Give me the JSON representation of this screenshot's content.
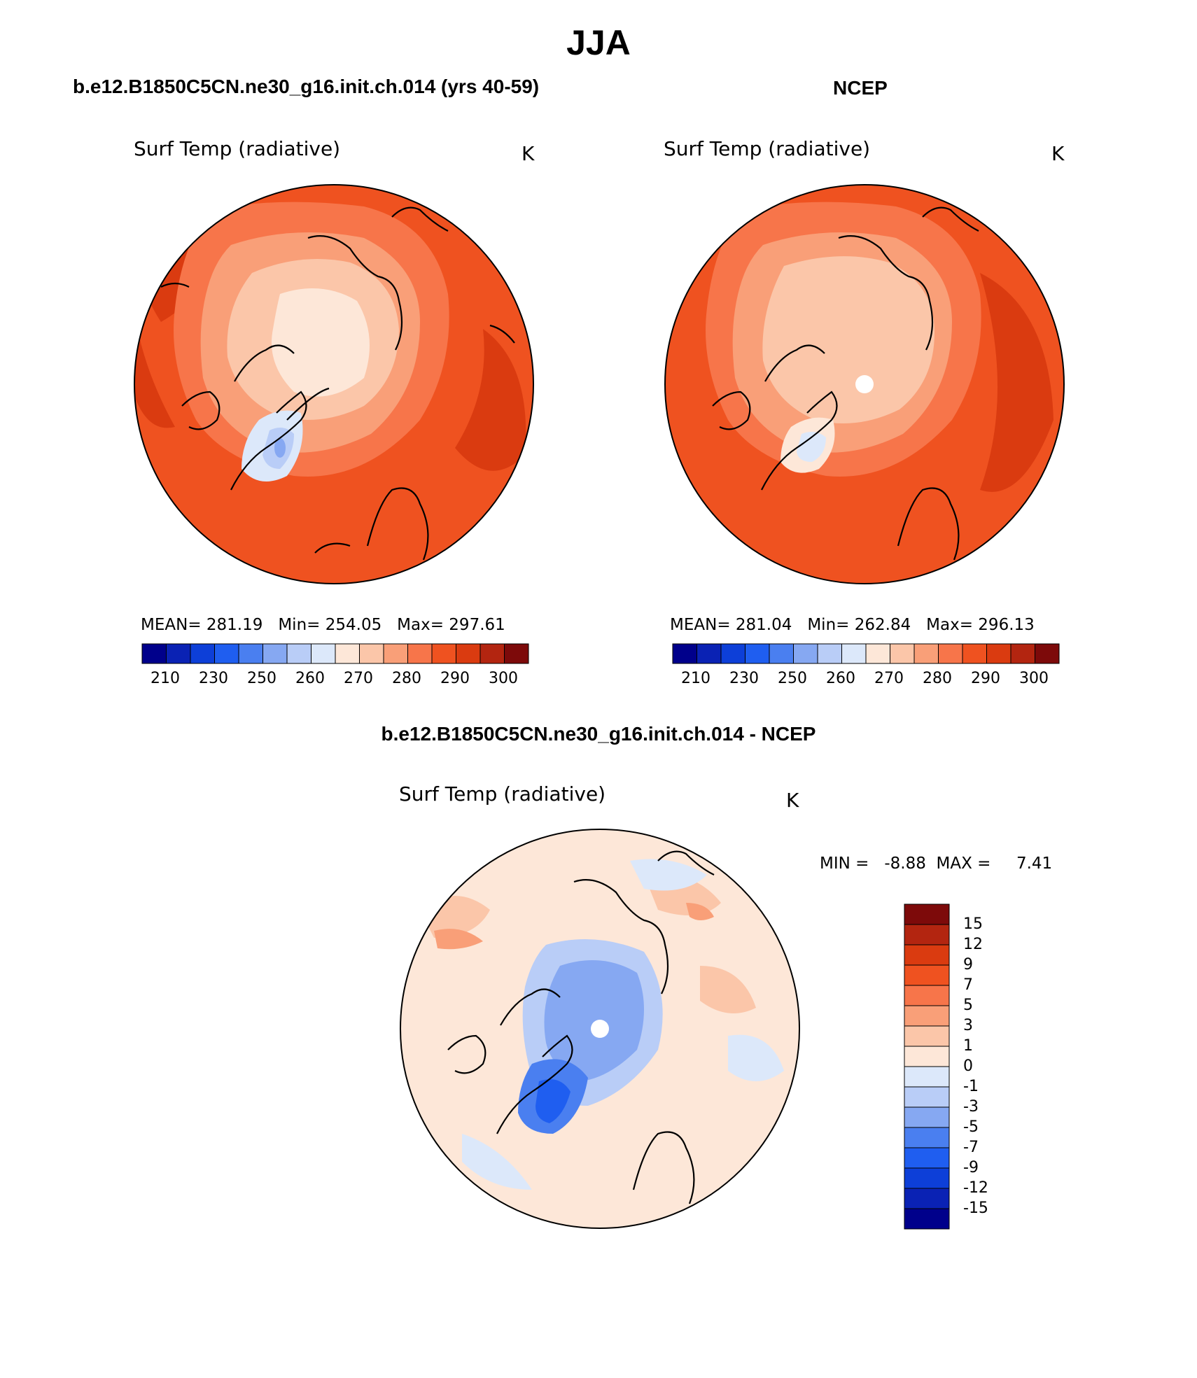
{
  "page_title": "JJA",
  "left_panel": {
    "case": "b.e12.B1850C5CN.ne30_g16.init.ch.014 (yrs 40-59)",
    "variable": "Surf Temp (radiative)",
    "units": "K",
    "stats": {
      "mean_label": "MEAN=",
      "mean": "281.19",
      "min_label": "Min=",
      "min": "254.05",
      "max_label": "Max=",
      "max": "297.61"
    },
    "colorbar_ticks": [
      "210",
      "230",
      "250",
      "260",
      "270",
      "280",
      "290",
      "300"
    ]
  },
  "right_panel": {
    "case": "NCEP",
    "variable": "Surf Temp (radiative)",
    "units": "K",
    "stats": {
      "mean_label": "MEAN=",
      "mean": "281.04",
      "min_label": "Min=",
      "min": "262.84",
      "max_label": "Max=",
      "max": "296.13"
    },
    "colorbar_ticks": [
      "210",
      "230",
      "250",
      "260",
      "270",
      "280",
      "290",
      "300"
    ]
  },
  "diff_panel": {
    "case": "b.e12.B1850C5CN.ne30_g16.init.ch.014 - NCEP",
    "variable": "Surf Temp (radiative)",
    "units": "K",
    "stats": {
      "min_label": "MIN =",
      "min": "-8.88",
      "max_label": "MAX =",
      "max": "7.41"
    },
    "colorbar_ticks": [
      "15",
      "12",
      "9",
      "7",
      "5",
      "3",
      "1",
      "0",
      "-1",
      "-3",
      "-5",
      "-7",
      "-9",
      "-12",
      "-15"
    ]
  },
  "abs_palette": [
    "#00008b",
    "#0a22b4",
    "#0d3fd8",
    "#1f5ef0",
    "#4a7ff0",
    "#86a8f2",
    "#b9cdf7",
    "#dce8fa",
    "#fde7d8",
    "#fbc6a9",
    "#f99f78",
    "#f7754a",
    "#ef5220",
    "#da3b10",
    "#b32510",
    "#7d0a0a"
  ],
  "diff_palette": [
    "#7d0a0a",
    "#b32510",
    "#da3b10",
    "#ef5220",
    "#f7754a",
    "#f99f78",
    "#fbc6a9",
    "#fde7d8",
    "#dce8fa",
    "#b9cdf7",
    "#86a8f2",
    "#4a7ff0",
    "#1f5ef0",
    "#0d3fd8",
    "#0a22b4",
    "#00008b"
  ]
}
